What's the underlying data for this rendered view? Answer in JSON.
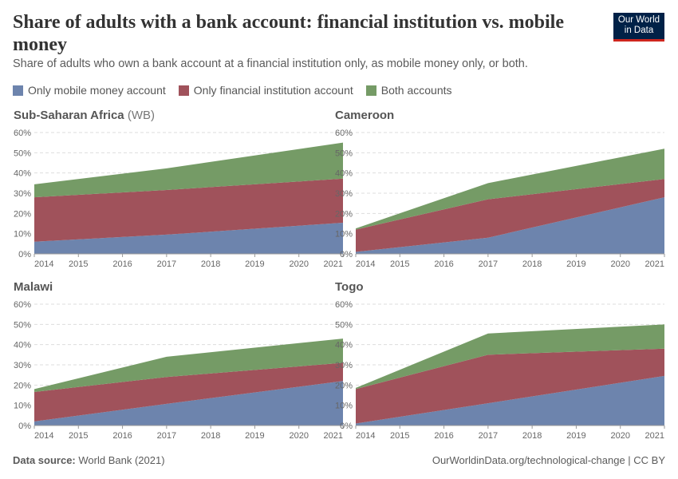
{
  "header": {
    "title": "Share of adults with a bank account: financial institution vs. mobile money",
    "subtitle": "Share of adults who own a bank account at a financial institution only, as mobile money only, or both.",
    "logo": "Our World in Data"
  },
  "footer": {
    "source_label": "Data source:",
    "source": "World Bank (2021)",
    "right": "OurWorldinData.org/technological-change | CC BY"
  },
  "chart_data": {
    "type": "area",
    "stacked": true,
    "grid": true,
    "legend_placement": "top-left",
    "ylim": [
      0,
      60
    ],
    "yticks": [
      "0%",
      "10%",
      "20%",
      "30%",
      "40%",
      "50%",
      "60%"
    ],
    "xticks": [
      "2014",
      "2015",
      "2016",
      "2017",
      "2018",
      "2019",
      "2020",
      "2021"
    ],
    "x": [
      2014,
      2017,
      2021
    ],
    "legend": [
      {
        "name": "Only mobile money account",
        "color": "#6d84ad"
      },
      {
        "name": "Only financial institution account",
        "color": "#a0525b"
      },
      {
        "name": "Both accounts",
        "color": "#759b66"
      }
    ],
    "panels": [
      {
        "title": "Sub-Saharan Africa",
        "title_suffix": "(WB)",
        "series": [
          {
            "name": "Only mobile money account",
            "values": [
              6,
              9.5,
              15.4
            ]
          },
          {
            "name": "Only financial institution account",
            "values": [
              22,
              22.1,
              21.8
            ]
          },
          {
            "name": "Both accounts",
            "values": [
              6.4,
              10.7,
              17.8
            ]
          }
        ]
      },
      {
        "title": "Cameroon",
        "title_suffix": "",
        "series": [
          {
            "name": "Only mobile money account",
            "values": [
              1,
              8,
              28
            ]
          },
          {
            "name": "Only financial institution account",
            "values": [
              11,
              19,
              9
            ]
          },
          {
            "name": "Both accounts",
            "values": [
              0.6,
              8,
              15
            ]
          }
        ]
      },
      {
        "title": "Malawi",
        "title_suffix": "",
        "series": [
          {
            "name": "Only mobile money account",
            "values": [
              2,
              10.7,
              22
            ]
          },
          {
            "name": "Only financial institution account",
            "values": [
              14.6,
              13.3,
              9
            ]
          },
          {
            "name": "Both accounts",
            "values": [
              1.4,
              10,
              12
            ]
          }
        ]
      },
      {
        "title": "Togo",
        "title_suffix": "",
        "series": [
          {
            "name": "Only mobile money account",
            "values": [
              1,
              11,
              24.5
            ]
          },
          {
            "name": "Only financial institution account",
            "values": [
              17,
              24,
              13.5
            ]
          },
          {
            "name": "Both accounts",
            "values": [
              0.6,
              10.5,
              12
            ]
          }
        ]
      }
    ]
  }
}
